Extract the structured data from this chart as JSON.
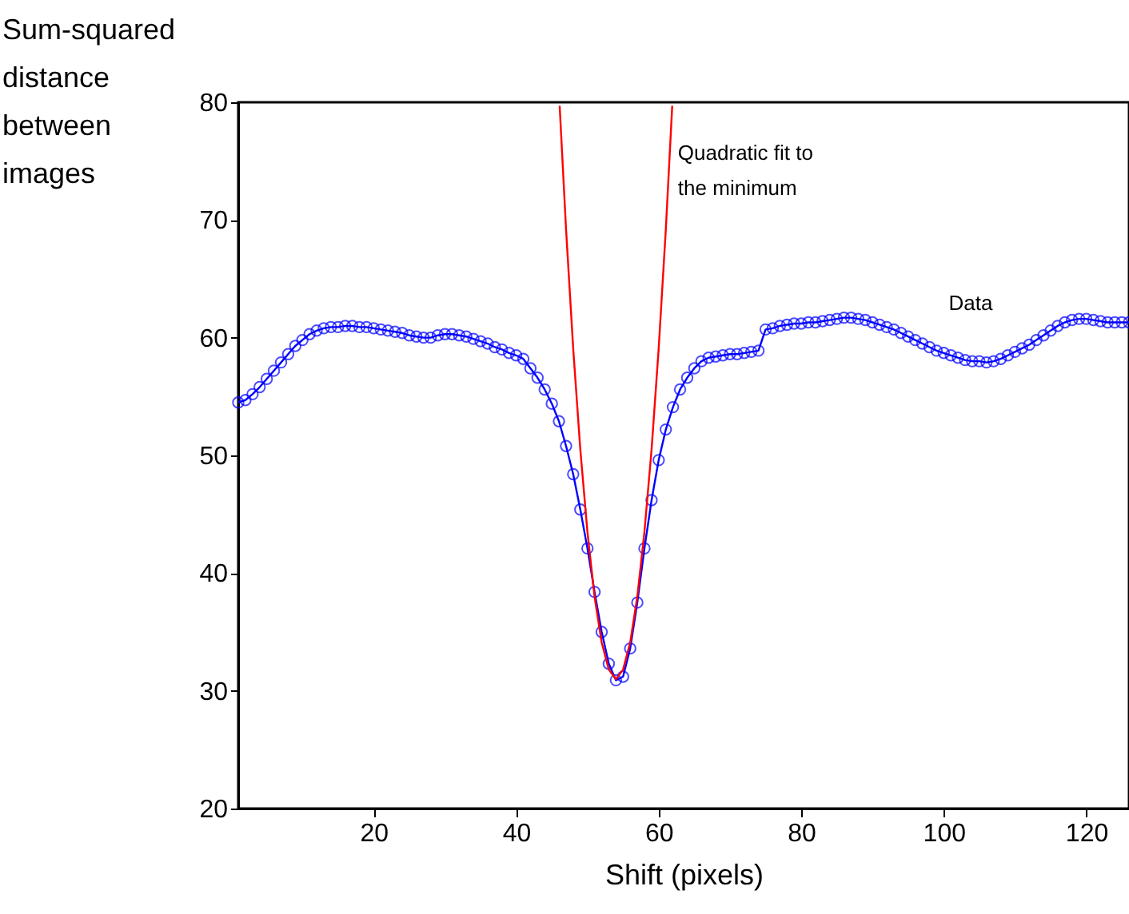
{
  "chart_data": {
    "type": "line",
    "xlabel": "Shift (pixels)",
    "ylabel": "Sum-squared\ndistance\nbetween\nimages",
    "xlim": [
      1,
      126
    ],
    "xticks": [
      20,
      40,
      60,
      80,
      100,
      120
    ],
    "ylim": [
      20,
      80
    ],
    "yticks": [
      20,
      30,
      40,
      50,
      60,
      70,
      80
    ],
    "grid": false,
    "series": [
      {
        "marker": "circle",
        "line_style": "solid",
        "color": "#0000ff",
        "x": [
          1,
          2,
          3,
          4,
          5,
          6,
          7,
          8,
          9,
          10,
          11,
          12,
          13,
          14,
          15,
          16,
          17,
          18,
          19,
          20,
          21,
          22,
          23,
          24,
          25,
          26,
          27,
          28,
          29,
          30,
          31,
          32,
          33,
          34,
          35,
          36,
          37,
          38,
          39,
          40,
          41,
          42,
          43,
          44,
          45,
          46,
          47,
          48,
          49,
          50,
          51,
          52,
          53,
          54,
          55,
          56,
          57,
          58,
          59,
          60,
          61,
          62,
          63,
          64,
          65,
          66,
          67,
          68,
          69,
          70,
          71,
          72,
          73,
          74,
          75,
          76,
          77,
          78,
          79,
          80,
          81,
          82,
          83,
          84,
          85,
          86,
          87,
          88,
          89,
          90,
          91,
          92,
          93,
          94,
          95,
          96,
          97,
          98,
          99,
          100,
          101,
          102,
          103,
          104,
          105,
          106,
          107,
          108,
          109,
          110,
          111,
          112,
          113,
          114,
          115,
          116,
          117,
          118,
          119,
          120,
          121,
          122,
          123,
          124,
          125,
          126
        ],
        "values": [
          54.5,
          54.7,
          55.2,
          55.8,
          56.5,
          57.2,
          57.9,
          58.6,
          59.3,
          59.8,
          60.3,
          60.6,
          60.8,
          60.9,
          60.9,
          61.0,
          61.0,
          60.9,
          60.9,
          60.8,
          60.7,
          60.6,
          60.5,
          60.4,
          60.2,
          60.1,
          60.0,
          60.0,
          60.2,
          60.3,
          60.3,
          60.2,
          60.1,
          59.9,
          59.7,
          59.5,
          59.2,
          59.0,
          58.7,
          58.5,
          58.2,
          57.4,
          56.6,
          55.6,
          54.4,
          52.9,
          50.8,
          48.4,
          45.4,
          42.1,
          38.4,
          35.0,
          32.3,
          30.9,
          31.2,
          33.6,
          37.5,
          42.1,
          46.2,
          49.6,
          52.2,
          54.1,
          55.6,
          56.6,
          57.4,
          58.0,
          58.3,
          58.4,
          58.5,
          58.6,
          58.6,
          58.7,
          58.8,
          58.9,
          60.7,
          60.8,
          61.0,
          61.1,
          61.2,
          61.2,
          61.3,
          61.3,
          61.4,
          61.5,
          61.6,
          61.7,
          61.7,
          61.6,
          61.5,
          61.3,
          61.1,
          60.9,
          60.7,
          60.4,
          60.1,
          59.8,
          59.5,
          59.2,
          58.9,
          58.7,
          58.5,
          58.3,
          58.1,
          58.0,
          58.0,
          57.9,
          58.0,
          58.2,
          58.5,
          58.8,
          59.1,
          59.4,
          59.8,
          60.2,
          60.6,
          61.0,
          61.3,
          61.5,
          61.6,
          61.6,
          61.5,
          61.4,
          61.3,
          61.3,
          61.3,
          61.3
        ]
      },
      {
        "marker": "none",
        "line_style": "solid",
        "color": "#ff0000",
        "x": [
          46.1,
          47,
          48,
          49,
          50,
          51,
          52,
          53,
          54,
          55,
          56,
          57,
          58,
          59,
          60,
          61,
          61.9
        ],
        "values": [
          79.7,
          69.2,
          59.1,
          50.5,
          43.5,
          38.0,
          34.1,
          31.8,
          31.0,
          31.8,
          34.1,
          38.0,
          43.5,
          50.5,
          59.1,
          69.2,
          79.7
        ]
      }
    ],
    "annotations": [
      {
        "text": "Quadratic fit to\nthe minimum",
        "x": 62.7,
        "y": 76.5
      },
      "Data"
    ]
  }
}
